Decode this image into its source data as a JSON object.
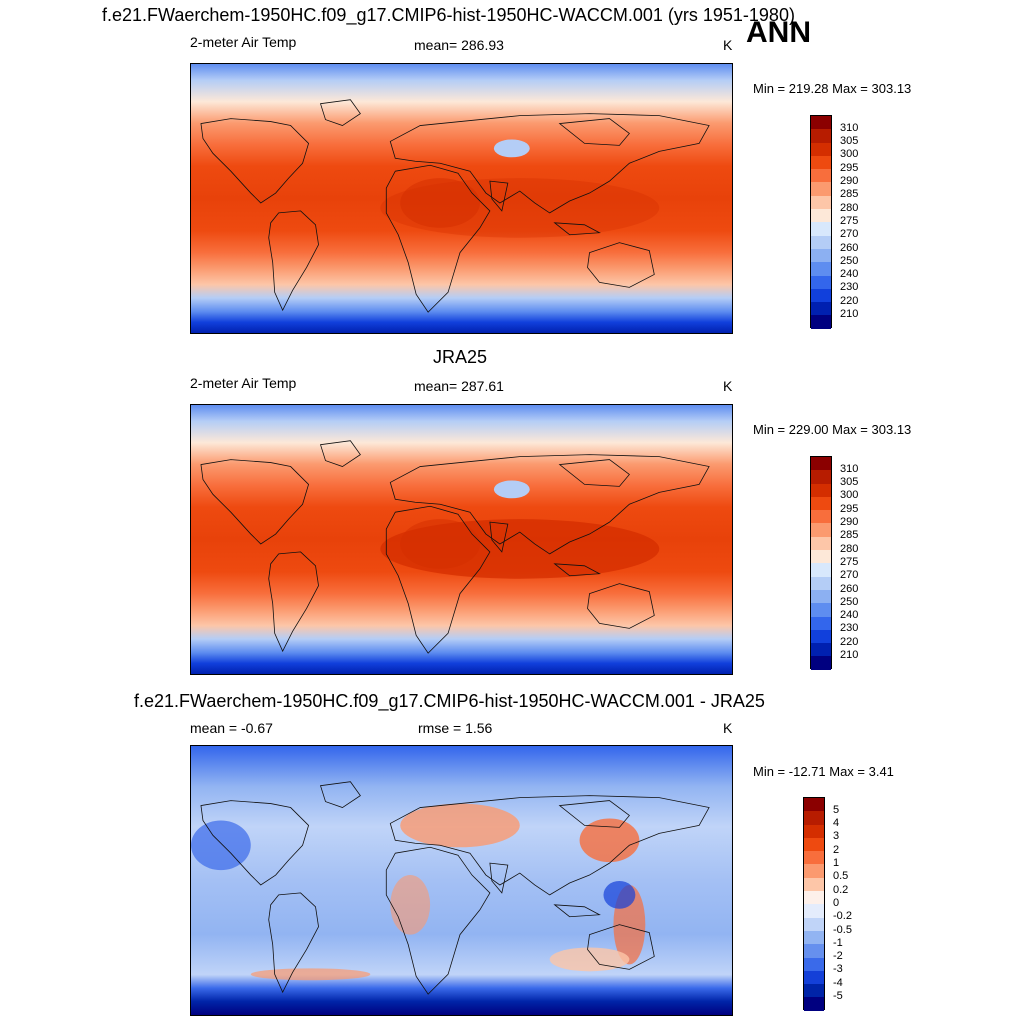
{
  "panels": [
    {
      "title": "f.e21.FWaerchem-1950HC.f09_g17.CMIP6-hist-1950HC-WACCM.001 (yrs 1951-1980)",
      "left_label": "2-meter Air Temp",
      "center_label": "mean= 286.93",
      "units": "K",
      "minmax": "Min = 219.28 Max = 303.13",
      "kind": "abs"
    },
    {
      "title": "JRA25",
      "left_label": "2-meter Air Temp",
      "center_label": "mean= 287.61",
      "units": "K",
      "minmax": "Min = 229.00 Max = 303.13",
      "kind": "abs"
    },
    {
      "title": "f.e21.FWaerchem-1950HC.f09_g17.CMIP6-hist-1950HC-WACCM.001 - JRA25",
      "left_label": "mean =  -0.67",
      "center_label": "rmse =   1.56",
      "units": "K",
      "minmax": "Min = -12.71 Max =   3.41",
      "kind": "diff"
    }
  ],
  "season": "ANN",
  "colorbars": {
    "abs": {
      "labels": [
        "310",
        "305",
        "300",
        "295",
        "290",
        "285",
        "280",
        "275",
        "270",
        "260",
        "250",
        "240",
        "230",
        "220",
        "210"
      ],
      "colors": [
        "#8b0000",
        "#b71c00",
        "#d42e00",
        "#ee4a10",
        "#f86e3c",
        "#fb9a6f",
        "#fdc6a8",
        "#fde8d8",
        "#d8e8fc",
        "#b4cdf6",
        "#8cb0f2",
        "#5e8df0",
        "#3366ec",
        "#1140dc",
        "#0020b0",
        "#000080"
      ]
    },
    "diff": {
      "labels": [
        "5",
        "4",
        "3",
        "2",
        "1",
        "0.5",
        "0.2",
        "0",
        "-0.2",
        "-0.5",
        "-1",
        "-2",
        "-3",
        "-4",
        "-5"
      ],
      "colors": [
        "#8b0000",
        "#b71c00",
        "#d42e00",
        "#ee4a10",
        "#f86e3c",
        "#fb9a6f",
        "#fdc6a8",
        "#fdf0ea",
        "#e4ecfc",
        "#c0d4f8",
        "#92b4f2",
        "#6690ee",
        "#3a6aea",
        "#1440d8",
        "#0024a8",
        "#000080"
      ]
    }
  }
}
